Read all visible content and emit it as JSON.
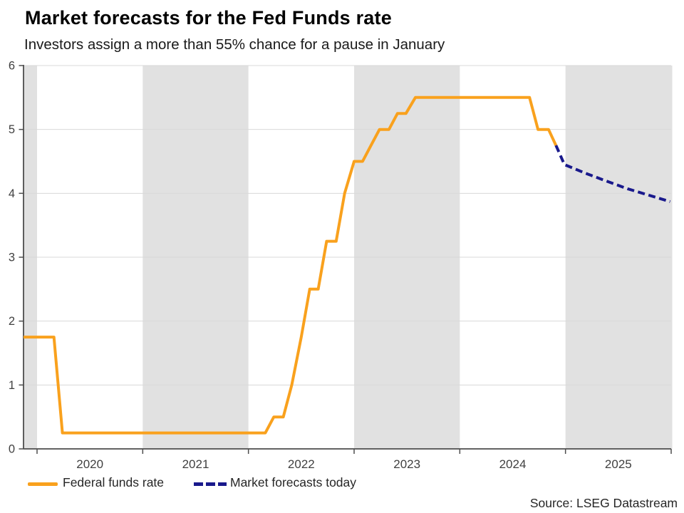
{
  "header": {
    "title": "Market forecasts for the Fed Funds rate",
    "subtitle": "Investors assign a more than 55% chance for a pause in January"
  },
  "source_note": "Source: LSEG Datastream",
  "legend": [
    {
      "label": "Federal funds rate",
      "color": "#F9A11D",
      "style": "solid"
    },
    {
      "label": "Market forecasts today",
      "color": "#19198C",
      "style": "dashed"
    }
  ],
  "chart_data": {
    "type": "line",
    "title": "Market forecasts for the Fed Funds rate",
    "subtitle": "Investors assign a more than 55% chance for a pause in January",
    "xlabel": "",
    "ylabel": "",
    "x_axis": {
      "min": 2019.872,
      "max": 2026.01,
      "boundary_ticks": [
        2020,
        2021,
        2022,
        2023,
        2024,
        2025,
        2026
      ],
      "year_labels": [
        "2020",
        "2021",
        "2022",
        "2023",
        "2024",
        "2025"
      ]
    },
    "y_axis": {
      "min": 0,
      "max": 6,
      "ticks": [
        0,
        1,
        2,
        3,
        4,
        5,
        6
      ],
      "tick_labels": [
        "0",
        "1",
        "2",
        "3",
        "4",
        "5",
        "6"
      ]
    },
    "shaded_year_bands": [
      [
        2019.872,
        2020.0
      ],
      [
        2021.0,
        2022.0
      ],
      [
        2023.0,
        2024.0
      ],
      [
        2025.0,
        2026.01
      ]
    ],
    "grid": "horizontal-only",
    "legend_position": "bottom-left",
    "series": [
      {
        "name": "Federal funds rate",
        "color": "#F9A11D",
        "dashed": false,
        "points": [
          [
            2019.872,
            1.75
          ],
          [
            2020.16,
            1.75
          ],
          [
            2020.24,
            0.25
          ],
          [
            2022.16,
            0.25
          ],
          [
            2022.24,
            0.5
          ],
          [
            2022.33,
            0.5
          ],
          [
            2022.41,
            1.0
          ],
          [
            2022.5,
            1.75
          ],
          [
            2022.58,
            2.5
          ],
          [
            2022.66,
            2.5
          ],
          [
            2022.74,
            3.25
          ],
          [
            2022.83,
            3.25
          ],
          [
            2022.91,
            4.0
          ],
          [
            2023.0,
            4.5
          ],
          [
            2023.08,
            4.5
          ],
          [
            2023.16,
            4.75
          ],
          [
            2023.24,
            5.0
          ],
          [
            2023.33,
            5.0
          ],
          [
            2023.41,
            5.25
          ],
          [
            2023.49,
            5.25
          ],
          [
            2023.58,
            5.5
          ],
          [
            2024.66,
            5.5
          ],
          [
            2024.74,
            5.0
          ],
          [
            2024.84,
            5.0
          ],
          [
            2024.91,
            4.75
          ]
        ]
      },
      {
        "name": "Market forecasts today",
        "color": "#19198C",
        "dashed": true,
        "points": [
          [
            2024.91,
            4.75
          ],
          [
            2024.99,
            4.45
          ],
          [
            2025.18,
            4.32
          ],
          [
            2025.39,
            4.19
          ],
          [
            2025.59,
            4.07
          ],
          [
            2025.79,
            3.97
          ],
          [
            2025.99,
            3.87
          ]
        ]
      }
    ],
    "colors": {
      "band": "#E1E1E1",
      "grid": "#D8D8D8",
      "axis": "#4D4D4D",
      "tick_text": "#404040",
      "background": "#FFFFFF"
    }
  }
}
